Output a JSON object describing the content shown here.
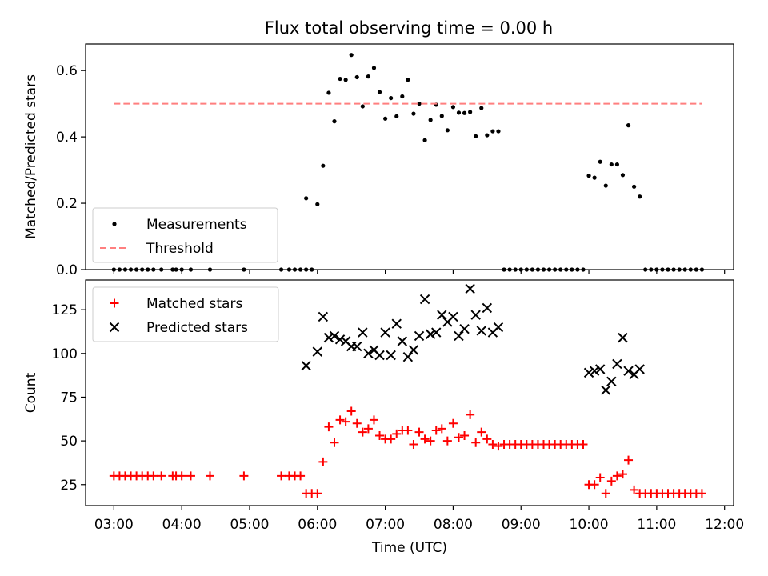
{
  "chart_data": [
    {
      "type": "scatter",
      "title": "Flux total observing time = 0.00 h",
      "xlabel": "",
      "ylabel": "Matched/Predicted stars",
      "xlim": [
        "02:35",
        "12:08"
      ],
      "ylim": [
        0,
        0.68
      ],
      "yticks": [
        0.0,
        0.2,
        0.4,
        0.6
      ],
      "ytick_labels": [
        "0.0",
        "0.2",
        "0.4",
        "0.6"
      ],
      "grid": false,
      "legend": "lower-left",
      "series": [
        {
          "name": "Measurements",
          "kind": "scatter",
          "color": "#000000",
          "points": [
            [
              "03:00",
              0.0
            ],
            [
              "03:05",
              0.0
            ],
            [
              "03:10",
              0.0
            ],
            [
              "03:15",
              0.0
            ],
            [
              "03:20",
              0.0
            ],
            [
              "03:25",
              0.0
            ],
            [
              "03:30",
              0.0
            ],
            [
              "03:35",
              0.0
            ],
            [
              "03:42",
              0.0
            ],
            [
              "03:52",
              0.0
            ],
            [
              "03:55",
              0.0
            ],
            [
              "04:00",
              0.0
            ],
            [
              "04:08",
              0.0
            ],
            [
              "04:25",
              0.0
            ],
            [
              "04:55",
              0.0
            ],
            [
              "05:28",
              0.0
            ],
            [
              "05:35",
              0.0
            ],
            [
              "05:40",
              0.0
            ],
            [
              "05:45",
              0.0
            ],
            [
              "05:50",
              0.0
            ],
            [
              "05:55",
              0.0
            ],
            [
              "05:50",
              0.215
            ],
            [
              "06:00",
              0.197
            ],
            [
              "06:05",
              0.313
            ],
            [
              "06:10",
              0.533
            ],
            [
              "06:15",
              0.447
            ],
            [
              "06:20",
              0.575
            ],
            [
              "06:25",
              0.572
            ],
            [
              "06:30",
              0.647
            ],
            [
              "06:35",
              0.58
            ],
            [
              "06:40",
              0.492
            ],
            [
              "06:45",
              0.582
            ],
            [
              "06:50",
              0.608
            ],
            [
              "06:55",
              0.535
            ],
            [
              "07:00",
              0.455
            ],
            [
              "07:05",
              0.517
            ],
            [
              "07:10",
              0.462
            ],
            [
              "07:15",
              0.522
            ],
            [
              "07:20",
              0.572
            ],
            [
              "07:25",
              0.47
            ],
            [
              "07:30",
              0.5
            ],
            [
              "07:35",
              0.39
            ],
            [
              "07:40",
              0.451
            ],
            [
              "07:45",
              0.497
            ],
            [
              "07:50",
              0.463
            ],
            [
              "07:55",
              0.42
            ],
            [
              "08:00",
              0.49
            ],
            [
              "08:05",
              0.473
            ],
            [
              "08:10",
              0.472
            ],
            [
              "08:15",
              0.475
            ],
            [
              "08:20",
              0.402
            ],
            [
              "08:25",
              0.487
            ],
            [
              "08:30",
              0.405
            ],
            [
              "08:35",
              0.417
            ],
            [
              "08:40",
              0.417
            ],
            [
              "08:45",
              0.0
            ],
            [
              "08:50",
              0.0
            ],
            [
              "08:55",
              0.0
            ],
            [
              "09:00",
              0.0
            ],
            [
              "09:05",
              0.0
            ],
            [
              "09:10",
              0.0
            ],
            [
              "09:15",
              0.0
            ],
            [
              "09:20",
              0.0
            ],
            [
              "09:25",
              0.0
            ],
            [
              "09:30",
              0.0
            ],
            [
              "09:35",
              0.0
            ],
            [
              "09:40",
              0.0
            ],
            [
              "09:45",
              0.0
            ],
            [
              "09:50",
              0.0
            ],
            [
              "09:55",
              0.0
            ],
            [
              "10:00",
              0.283
            ],
            [
              "10:05",
              0.277
            ],
            [
              "10:10",
              0.325
            ],
            [
              "10:15",
              0.253
            ],
            [
              "10:20",
              0.317
            ],
            [
              "10:25",
              0.317
            ],
            [
              "10:30",
              0.285
            ],
            [
              "10:35",
              0.435
            ],
            [
              "10:40",
              0.25
            ],
            [
              "10:45",
              0.22
            ],
            [
              "10:50",
              0.0
            ],
            [
              "10:55",
              0.0
            ],
            [
              "11:00",
              0.0
            ],
            [
              "11:05",
              0.0
            ],
            [
              "11:10",
              0.0
            ],
            [
              "11:15",
              0.0
            ],
            [
              "11:20",
              0.0
            ],
            [
              "11:25",
              0.0
            ],
            [
              "11:30",
              0.0
            ],
            [
              "11:35",
              0.0
            ],
            [
              "11:40",
              0.0
            ]
          ]
        },
        {
          "name": "Threshold",
          "kind": "dashed-line",
          "color": "#ff7f7f",
          "points": [
            [
              "03:00",
              0.5
            ],
            [
              "11:40",
              0.5
            ]
          ]
        }
      ]
    },
    {
      "type": "scatter",
      "title": "",
      "xlabel": "Time (UTC)",
      "ylabel": "Count",
      "xlim": [
        "02:35",
        "12:08"
      ],
      "ylim": [
        13,
        142
      ],
      "yticks": [
        25,
        50,
        75,
        100,
        125
      ],
      "ytick_labels": [
        "25",
        "50",
        "75",
        "100",
        "125"
      ],
      "xticks": [
        "03:00",
        "04:00",
        "05:00",
        "06:00",
        "07:00",
        "08:00",
        "09:00",
        "10:00",
        "11:00",
        "12:00"
      ],
      "xtick_labels": [
        "03:00",
        "04:00",
        "05:00",
        "06:00",
        "07:00",
        "08:00",
        "09:00",
        "10:00",
        "11:00",
        "12:00"
      ],
      "grid": false,
      "legend": "upper-left",
      "series": [
        {
          "name": "Matched stars",
          "kind": "plus",
          "color": "#ff0000",
          "points": [
            [
              "03:00",
              30
            ],
            [
              "03:05",
              30
            ],
            [
              "03:10",
              30
            ],
            [
              "03:15",
              30
            ],
            [
              "03:20",
              30
            ],
            [
              "03:25",
              30
            ],
            [
              "03:30",
              30
            ],
            [
              "03:35",
              30
            ],
            [
              "03:42",
              30
            ],
            [
              "03:52",
              30
            ],
            [
              "03:55",
              30
            ],
            [
              "04:00",
              30
            ],
            [
              "04:08",
              30
            ],
            [
              "04:25",
              30
            ],
            [
              "04:55",
              30
            ],
            [
              "05:28",
              30
            ],
            [
              "05:35",
              30
            ],
            [
              "05:40",
              30
            ],
            [
              "05:45",
              30
            ],
            [
              "05:50",
              20
            ],
            [
              "05:55",
              20
            ],
            [
              "06:00",
              20
            ],
            [
              "06:05",
              38
            ],
            [
              "06:10",
              58
            ],
            [
              "06:15",
              49
            ],
            [
              "06:20",
              62
            ],
            [
              "06:25",
              61
            ],
            [
              "06:30",
              67
            ],
            [
              "06:35",
              60
            ],
            [
              "06:40",
              55
            ],
            [
              "06:45",
              57
            ],
            [
              "06:50",
              62
            ],
            [
              "06:55",
              53
            ],
            [
              "07:00",
              51
            ],
            [
              "07:05",
              51
            ],
            [
              "07:10",
              54
            ],
            [
              "07:15",
              56
            ],
            [
              "07:20",
              56
            ],
            [
              "07:25",
              48
            ],
            [
              "07:30",
              55
            ],
            [
              "07:35",
              51
            ],
            [
              "07:40",
              50
            ],
            [
              "07:45",
              56
            ],
            [
              "07:50",
              57
            ],
            [
              "07:55",
              50
            ],
            [
              "08:00",
              60
            ],
            [
              "08:05",
              52
            ],
            [
              "08:10",
              53
            ],
            [
              "08:15",
              65
            ],
            [
              "08:20",
              49
            ],
            [
              "08:25",
              55
            ],
            [
              "08:30",
              51
            ],
            [
              "08:35",
              48
            ],
            [
              "08:40",
              47
            ],
            [
              "08:45",
              48
            ],
            [
              "08:50",
              48
            ],
            [
              "08:55",
              48
            ],
            [
              "09:00",
              48
            ],
            [
              "09:05",
              48
            ],
            [
              "09:10",
              48
            ],
            [
              "09:15",
              48
            ],
            [
              "09:20",
              48
            ],
            [
              "09:25",
              48
            ],
            [
              "09:30",
              48
            ],
            [
              "09:35",
              48
            ],
            [
              "09:40",
              48
            ],
            [
              "09:45",
              48
            ],
            [
              "09:50",
              48
            ],
            [
              "09:55",
              48
            ],
            [
              "10:00",
              25
            ],
            [
              "10:05",
              25
            ],
            [
              "10:10",
              29
            ],
            [
              "10:15",
              20
            ],
            [
              "10:20",
              27
            ],
            [
              "10:25",
              30
            ],
            [
              "10:30",
              31
            ],
            [
              "10:35",
              39
            ],
            [
              "10:40",
              22
            ],
            [
              "10:45",
              20
            ],
            [
              "10:50",
              20
            ],
            [
              "10:55",
              20
            ],
            [
              "11:00",
              20
            ],
            [
              "11:05",
              20
            ],
            [
              "11:10",
              20
            ],
            [
              "11:15",
              20
            ],
            [
              "11:20",
              20
            ],
            [
              "11:25",
              20
            ],
            [
              "11:30",
              20
            ],
            [
              "11:35",
              20
            ],
            [
              "11:40",
              20
            ]
          ]
        },
        {
          "name": "Predicted stars",
          "kind": "x",
          "color": "#000000",
          "points": [
            [
              "05:50",
              93
            ],
            [
              "06:00",
              101
            ],
            [
              "06:05",
              121
            ],
            [
              "06:10",
              109
            ],
            [
              "06:15",
              110
            ],
            [
              "06:20",
              108
            ],
            [
              "06:25",
              107
            ],
            [
              "06:30",
              104
            ],
            [
              "06:35",
              104
            ],
            [
              "06:40",
              112
            ],
            [
              "06:45",
              100
            ],
            [
              "06:50",
              102
            ],
            [
              "06:55",
              99
            ],
            [
              "07:00",
              112
            ],
            [
              "07:05",
              99
            ],
            [
              "07:10",
              117
            ],
            [
              "07:15",
              107
            ],
            [
              "07:20",
              98
            ],
            [
              "07:25",
              102
            ],
            [
              "07:30",
              110
            ],
            [
              "07:35",
              131
            ],
            [
              "07:40",
              111
            ],
            [
              "07:45",
              112
            ],
            [
              "07:50",
              122
            ],
            [
              "07:55",
              118
            ],
            [
              "08:00",
              121
            ],
            [
              "08:05",
              110
            ],
            [
              "08:10",
              114
            ],
            [
              "08:15",
              137
            ],
            [
              "08:20",
              122
            ],
            [
              "08:25",
              113
            ],
            [
              "08:30",
              126
            ],
            [
              "08:35",
              112
            ],
            [
              "08:40",
              115
            ],
            [
              "10:00",
              89
            ],
            [
              "10:05",
              90
            ],
            [
              "10:10",
              91
            ],
            [
              "10:15",
              79
            ],
            [
              "10:20",
              84
            ],
            [
              "10:25",
              94
            ],
            [
              "10:30",
              109
            ],
            [
              "10:35",
              90
            ],
            [
              "10:40",
              88
            ],
            [
              "10:45",
              91
            ]
          ]
        }
      ]
    }
  ]
}
